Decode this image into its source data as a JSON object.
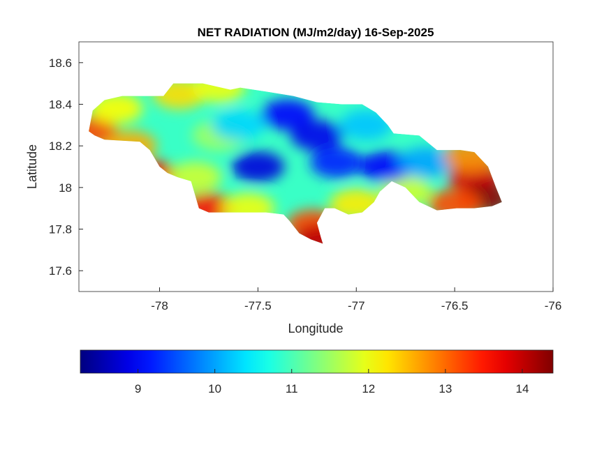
{
  "chart_data": {
    "type": "heatmap",
    "title": "NET RADIATION (MJ/m2/day) 16-Sep-2025",
    "xlabel": "Longitude",
    "ylabel": "Latitude",
    "xlim": [
      -78.41,
      -76.0
    ],
    "ylim": [
      17.5,
      18.7
    ],
    "xticks": [
      -78,
      -77.5,
      -77,
      -76.5,
      -76
    ],
    "xtick_labels": [
      "-78",
      "-77.5",
      "-77",
      "-76.5",
      "-76"
    ],
    "yticks": [
      17.6,
      17.8,
      18,
      18.2,
      18.4,
      18.6
    ],
    "ytick_labels": [
      "17.6",
      "17.8",
      "18",
      "18.2",
      "18.4",
      "18.6"
    ],
    "grid": false,
    "colormap": "jet",
    "colorbar": {
      "location": "bottom",
      "clim": [
        8.25,
        14.4
      ],
      "ticks": [
        9,
        10,
        11,
        12,
        13,
        14
      ],
      "tick_labels": [
        "9",
        "10",
        "11",
        "12",
        "13",
        "14"
      ]
    },
    "base_value": 10.9,
    "region_outline": [
      [
        -78.36,
        18.27
      ],
      [
        -78.34,
        18.37
      ],
      [
        -78.28,
        18.42
      ],
      [
        -78.19,
        18.44
      ],
      [
        -78.07,
        18.44
      ],
      [
        -77.98,
        18.44
      ],
      [
        -77.93,
        18.5
      ],
      [
        -77.78,
        18.5
      ],
      [
        -77.64,
        18.47
      ],
      [
        -77.59,
        18.48
      ],
      [
        -77.45,
        18.46
      ],
      [
        -77.32,
        18.44
      ],
      [
        -77.2,
        18.41
      ],
      [
        -77.07,
        18.4
      ],
      [
        -76.97,
        18.4
      ],
      [
        -76.9,
        18.36
      ],
      [
        -76.84,
        18.3
      ],
      [
        -76.81,
        18.26
      ],
      [
        -76.68,
        18.25
      ],
      [
        -76.59,
        18.18
      ],
      [
        -76.47,
        18.18
      ],
      [
        -76.4,
        18.17
      ],
      [
        -76.33,
        18.1
      ],
      [
        -76.29,
        18.0
      ],
      [
        -76.26,
        17.93
      ],
      [
        -76.31,
        17.91
      ],
      [
        -76.4,
        17.9
      ],
      [
        -76.49,
        17.9
      ],
      [
        -76.59,
        17.89
      ],
      [
        -76.68,
        17.93
      ],
      [
        -76.75,
        18.0
      ],
      [
        -76.82,
        18.03
      ],
      [
        -76.88,
        17.98
      ],
      [
        -76.91,
        17.93
      ],
      [
        -76.97,
        17.88
      ],
      [
        -77.04,
        17.87
      ],
      [
        -77.11,
        17.9
      ],
      [
        -77.16,
        17.9
      ],
      [
        -77.2,
        17.83
      ],
      [
        -77.18,
        17.76
      ],
      [
        -77.17,
        17.73
      ],
      [
        -77.23,
        17.75
      ],
      [
        -77.29,
        17.78
      ],
      [
        -77.34,
        17.84
      ],
      [
        -77.37,
        17.87
      ],
      [
        -77.46,
        17.88
      ],
      [
        -77.61,
        17.88
      ],
      [
        -77.75,
        17.88
      ],
      [
        -77.8,
        17.9
      ],
      [
        -77.84,
        18.03
      ],
      [
        -77.91,
        18.05
      ],
      [
        -77.96,
        18.07
      ],
      [
        -78.0,
        18.1
      ],
      [
        -78.05,
        18.18
      ],
      [
        -78.1,
        18.22
      ],
      [
        -78.28,
        18.23
      ],
      [
        -78.33,
        18.25
      ]
    ],
    "field_samples": [
      {
        "lon": -78.35,
        "lat": 18.27,
        "value": 13.2
      },
      {
        "lon": -78.05,
        "lat": 18.06,
        "value": 13.6
      },
      {
        "lon": -78.15,
        "lat": 18.2,
        "value": 12.6
      },
      {
        "lon": -78.22,
        "lat": 18.38,
        "value": 12.1
      },
      {
        "lon": -77.9,
        "lat": 18.45,
        "value": 12.3
      },
      {
        "lon": -77.7,
        "lat": 18.48,
        "value": 12.0
      },
      {
        "lon": -77.75,
        "lat": 17.9,
        "value": 13.5
      },
      {
        "lon": -77.55,
        "lat": 17.9,
        "value": 12.0
      },
      {
        "lon": -77.22,
        "lat": 17.82,
        "value": 13.2
      },
      {
        "lon": -77.18,
        "lat": 17.75,
        "value": 14.0
      },
      {
        "lon": -77.0,
        "lat": 17.92,
        "value": 12.2
      },
      {
        "lon": -76.75,
        "lat": 17.98,
        "value": 11.8
      },
      {
        "lon": -77.7,
        "lat": 18.25,
        "value": 11.5
      },
      {
        "lon": -77.82,
        "lat": 18.05,
        "value": 11.8
      },
      {
        "lon": -77.6,
        "lat": 18.3,
        "value": 10.3
      },
      {
        "lon": -77.5,
        "lat": 18.1,
        "value": 8.8
      },
      {
        "lon": -77.35,
        "lat": 18.35,
        "value": 9.0
      },
      {
        "lon": -77.2,
        "lat": 18.25,
        "value": 8.9
      },
      {
        "lon": -77.1,
        "lat": 18.12,
        "value": 9.2
      },
      {
        "lon": -76.85,
        "lat": 18.1,
        "value": 9.0
      },
      {
        "lon": -76.65,
        "lat": 18.12,
        "value": 10.0
      },
      {
        "lon": -76.95,
        "lat": 18.3,
        "value": 10.2
      },
      {
        "lon": -76.4,
        "lat": 18.05,
        "value": 13.8
      },
      {
        "lon": -76.35,
        "lat": 17.95,
        "value": 14.3
      },
      {
        "lon": -76.5,
        "lat": 17.92,
        "value": 13.2
      },
      {
        "lon": -76.42,
        "lat": 18.15,
        "value": 12.8
      }
    ]
  }
}
